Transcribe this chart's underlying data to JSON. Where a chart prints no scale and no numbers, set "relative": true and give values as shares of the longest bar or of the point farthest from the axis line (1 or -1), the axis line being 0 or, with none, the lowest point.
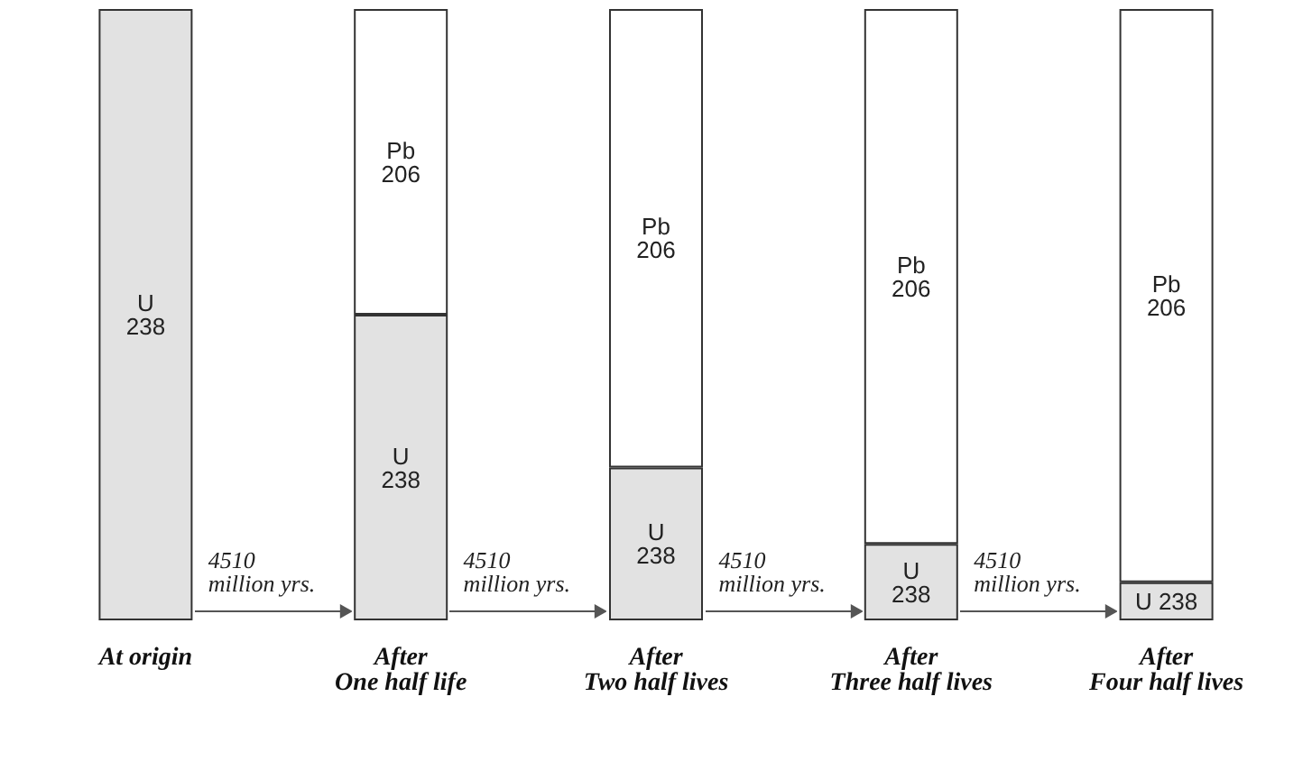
{
  "chart_data": {
    "type": "bar",
    "stacked": true,
    "relative": true,
    "categories": [
      "At origin",
      "After\nOne half life",
      "After\nTwo half lives",
      "After\nThree half lives",
      "After\nFour half lives"
    ],
    "series": [
      {
        "name": "U 238",
        "color": "#e2e2e2",
        "values": [
          1,
          0.5,
          0.25,
          0.125,
          0.0625
        ]
      },
      {
        "name": "Pb 206",
        "color": "#ffffff",
        "values": [
          null,
          0.5,
          0.75,
          0.875,
          0.9375
        ]
      }
    ],
    "annotations": [
      "4510 million yrs.",
      "4510 million yrs.",
      "4510 million yrs.",
      "4510 million yrs."
    ],
    "legend": false
  }
}
